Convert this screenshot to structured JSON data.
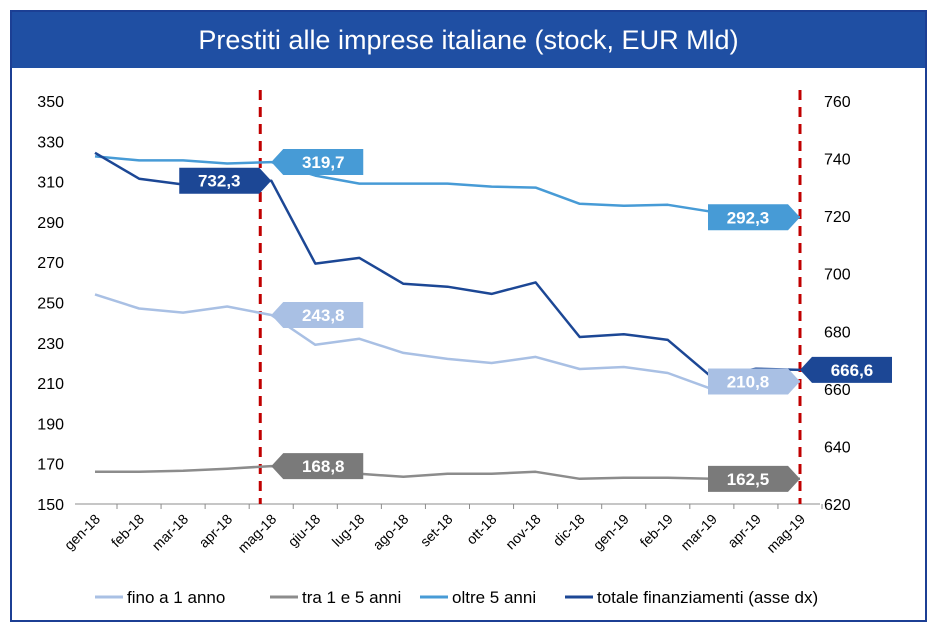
{
  "chart_data": {
    "type": "line",
    "title": "Prestiti alle imprese italiane (stock, EUR Mld)",
    "categories": [
      "gen-18",
      "feb-18",
      "mar-18",
      "apr-18",
      "mag-18",
      "giu-18",
      "lug-18",
      "ago-18",
      "set-18",
      "ott-18",
      "nov-18",
      "dic-18",
      "gen-19",
      "feb-19",
      "mar-19",
      "apr-19",
      "mag-19"
    ],
    "y_left": {
      "min": 150,
      "max": 350,
      "ticks": [
        "350",
        "330",
        "310",
        "290",
        "270",
        "250",
        "230",
        "210",
        "190",
        "170",
        "150"
      ]
    },
    "y_right": {
      "min": 620,
      "max": 760,
      "ticks": [
        "760",
        "740",
        "720",
        "700",
        "680",
        "660",
        "640",
        "620"
      ]
    },
    "series": [
      {
        "name": "fino a 1 anno",
        "axis": "left",
        "color": "#a9c0e4",
        "values": [
          254,
          247,
          245,
          248,
          243.8,
          229,
          232,
          225,
          222,
          220,
          223,
          217,
          218,
          215,
          207,
          210,
          210.8
        ]
      },
      {
        "name": "tra 1 e 5 anni",
        "axis": "left",
        "color": "#8c8c8c",
        "values": [
          166,
          166,
          166.5,
          167.5,
          168.8,
          165.5,
          165,
          163.5,
          165,
          165,
          166,
          162.5,
          163,
          163,
          162.5,
          162.5,
          162.5
        ]
      },
      {
        "name": "oltre 5 anni",
        "axis": "left",
        "color": "#479bd6",
        "values": [
          322.5,
          320.5,
          320.5,
          319,
          319.7,
          313,
          309,
          309,
          309,
          307.5,
          307,
          299,
          298,
          298.5,
          295,
          292.5,
          292.3
        ]
      },
      {
        "name": "totale finanziamenti (asse dx)",
        "axis": "right",
        "color": "#1c4795",
        "values": [
          742,
          733,
          731,
          731,
          732.3,
          703.5,
          705.5,
          696.5,
          695.5,
          693,
          697,
          678,
          679,
          677,
          664,
          667,
          666.6
        ]
      }
    ],
    "callouts": [
      {
        "text": "732,3",
        "series": 3,
        "index": 4,
        "side": "left",
        "color": "#1c4795"
      },
      {
        "text": "319,7",
        "series": 2,
        "index": 4,
        "side": "right",
        "color": "#479bd6"
      },
      {
        "text": "243,8",
        "series": 0,
        "index": 4,
        "side": "right",
        "color": "#a9c0e4"
      },
      {
        "text": "168,8",
        "series": 1,
        "index": 4,
        "side": "right",
        "color": "#7a7a7a"
      },
      {
        "text": "292,3",
        "series": 2,
        "index": 16,
        "side": "left",
        "color": "#479bd6"
      },
      {
        "text": "210,8",
        "series": 0,
        "index": 16,
        "side": "left",
        "color": "#a9c0e4"
      },
      {
        "text": "162,5",
        "series": 1,
        "index": 16,
        "side": "left",
        "color": "#7a7a7a"
      },
      {
        "text": "666,6",
        "series": 3,
        "index": 16,
        "side": "right",
        "color": "#1c4795"
      }
    ],
    "reference_lines": [
      4,
      16
    ],
    "reference_line_color": "#c00000",
    "grid": false,
    "legend": "bottom"
  }
}
